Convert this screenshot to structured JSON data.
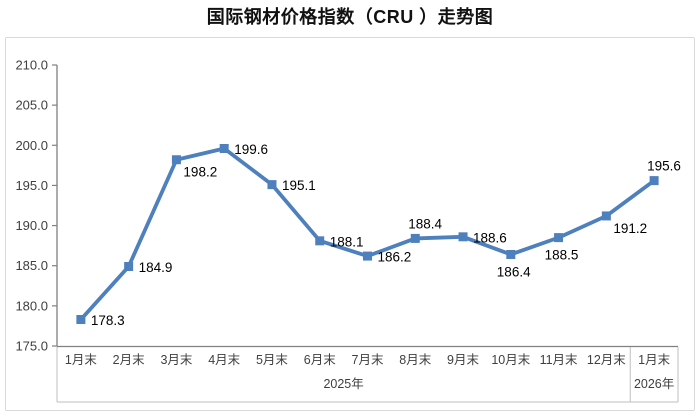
{
  "title": "国际钢材价格指数（CRU ）走势图",
  "chart_data": {
    "type": "line",
    "title": "国际钢材价格指数（CRU ）走势图",
    "x": [
      "1月末",
      "2月末",
      "3月末",
      "4月末",
      "5月末",
      "6月末",
      "7月末",
      "8月末",
      "9月末",
      "10月末",
      "11月末",
      "12月末",
      "1月末"
    ],
    "x_groups": [
      {
        "label": "2025年",
        "span": 12
      },
      {
        "label": "2026年",
        "span": 1
      }
    ],
    "values": [
      178.3,
      184.9,
      198.2,
      199.6,
      195.1,
      188.1,
      186.2,
      188.4,
      188.6,
      186.4,
      188.5,
      191.2,
      195.6
    ],
    "point_labels": [
      "178.3",
      "184.9",
      "198.2",
      "199.6",
      "195.1",
      "188.1",
      "186.2",
      "188.4",
      "188.6",
      "186.4",
      "188.5",
      "191.2",
      "195.6"
    ],
    "label_positions": [
      "right",
      "right",
      "below-right",
      "right",
      "right",
      "right",
      "right",
      "above",
      "right",
      "below",
      "below",
      "below-right",
      "above"
    ],
    "ylim": [
      175.0,
      210.0
    ],
    "ytick_step": 5.0,
    "yticks": [
      "175.0",
      "180.0",
      "185.0",
      "190.0",
      "195.0",
      "200.0",
      "205.0",
      "210.0"
    ],
    "grid": false,
    "legend": "none",
    "series_name": "国际钢材价格指数（CRU）"
  },
  "colors": {
    "line": "#4E80BD",
    "marker": "#4E80BD",
    "data_label": "#000000",
    "axis_line": "#808080",
    "axis_tick": "#808080",
    "axis_label": "#404040",
    "group_line": "#bfbfbf",
    "frame_border": "#d9d9d9",
    "title": "#111111"
  }
}
